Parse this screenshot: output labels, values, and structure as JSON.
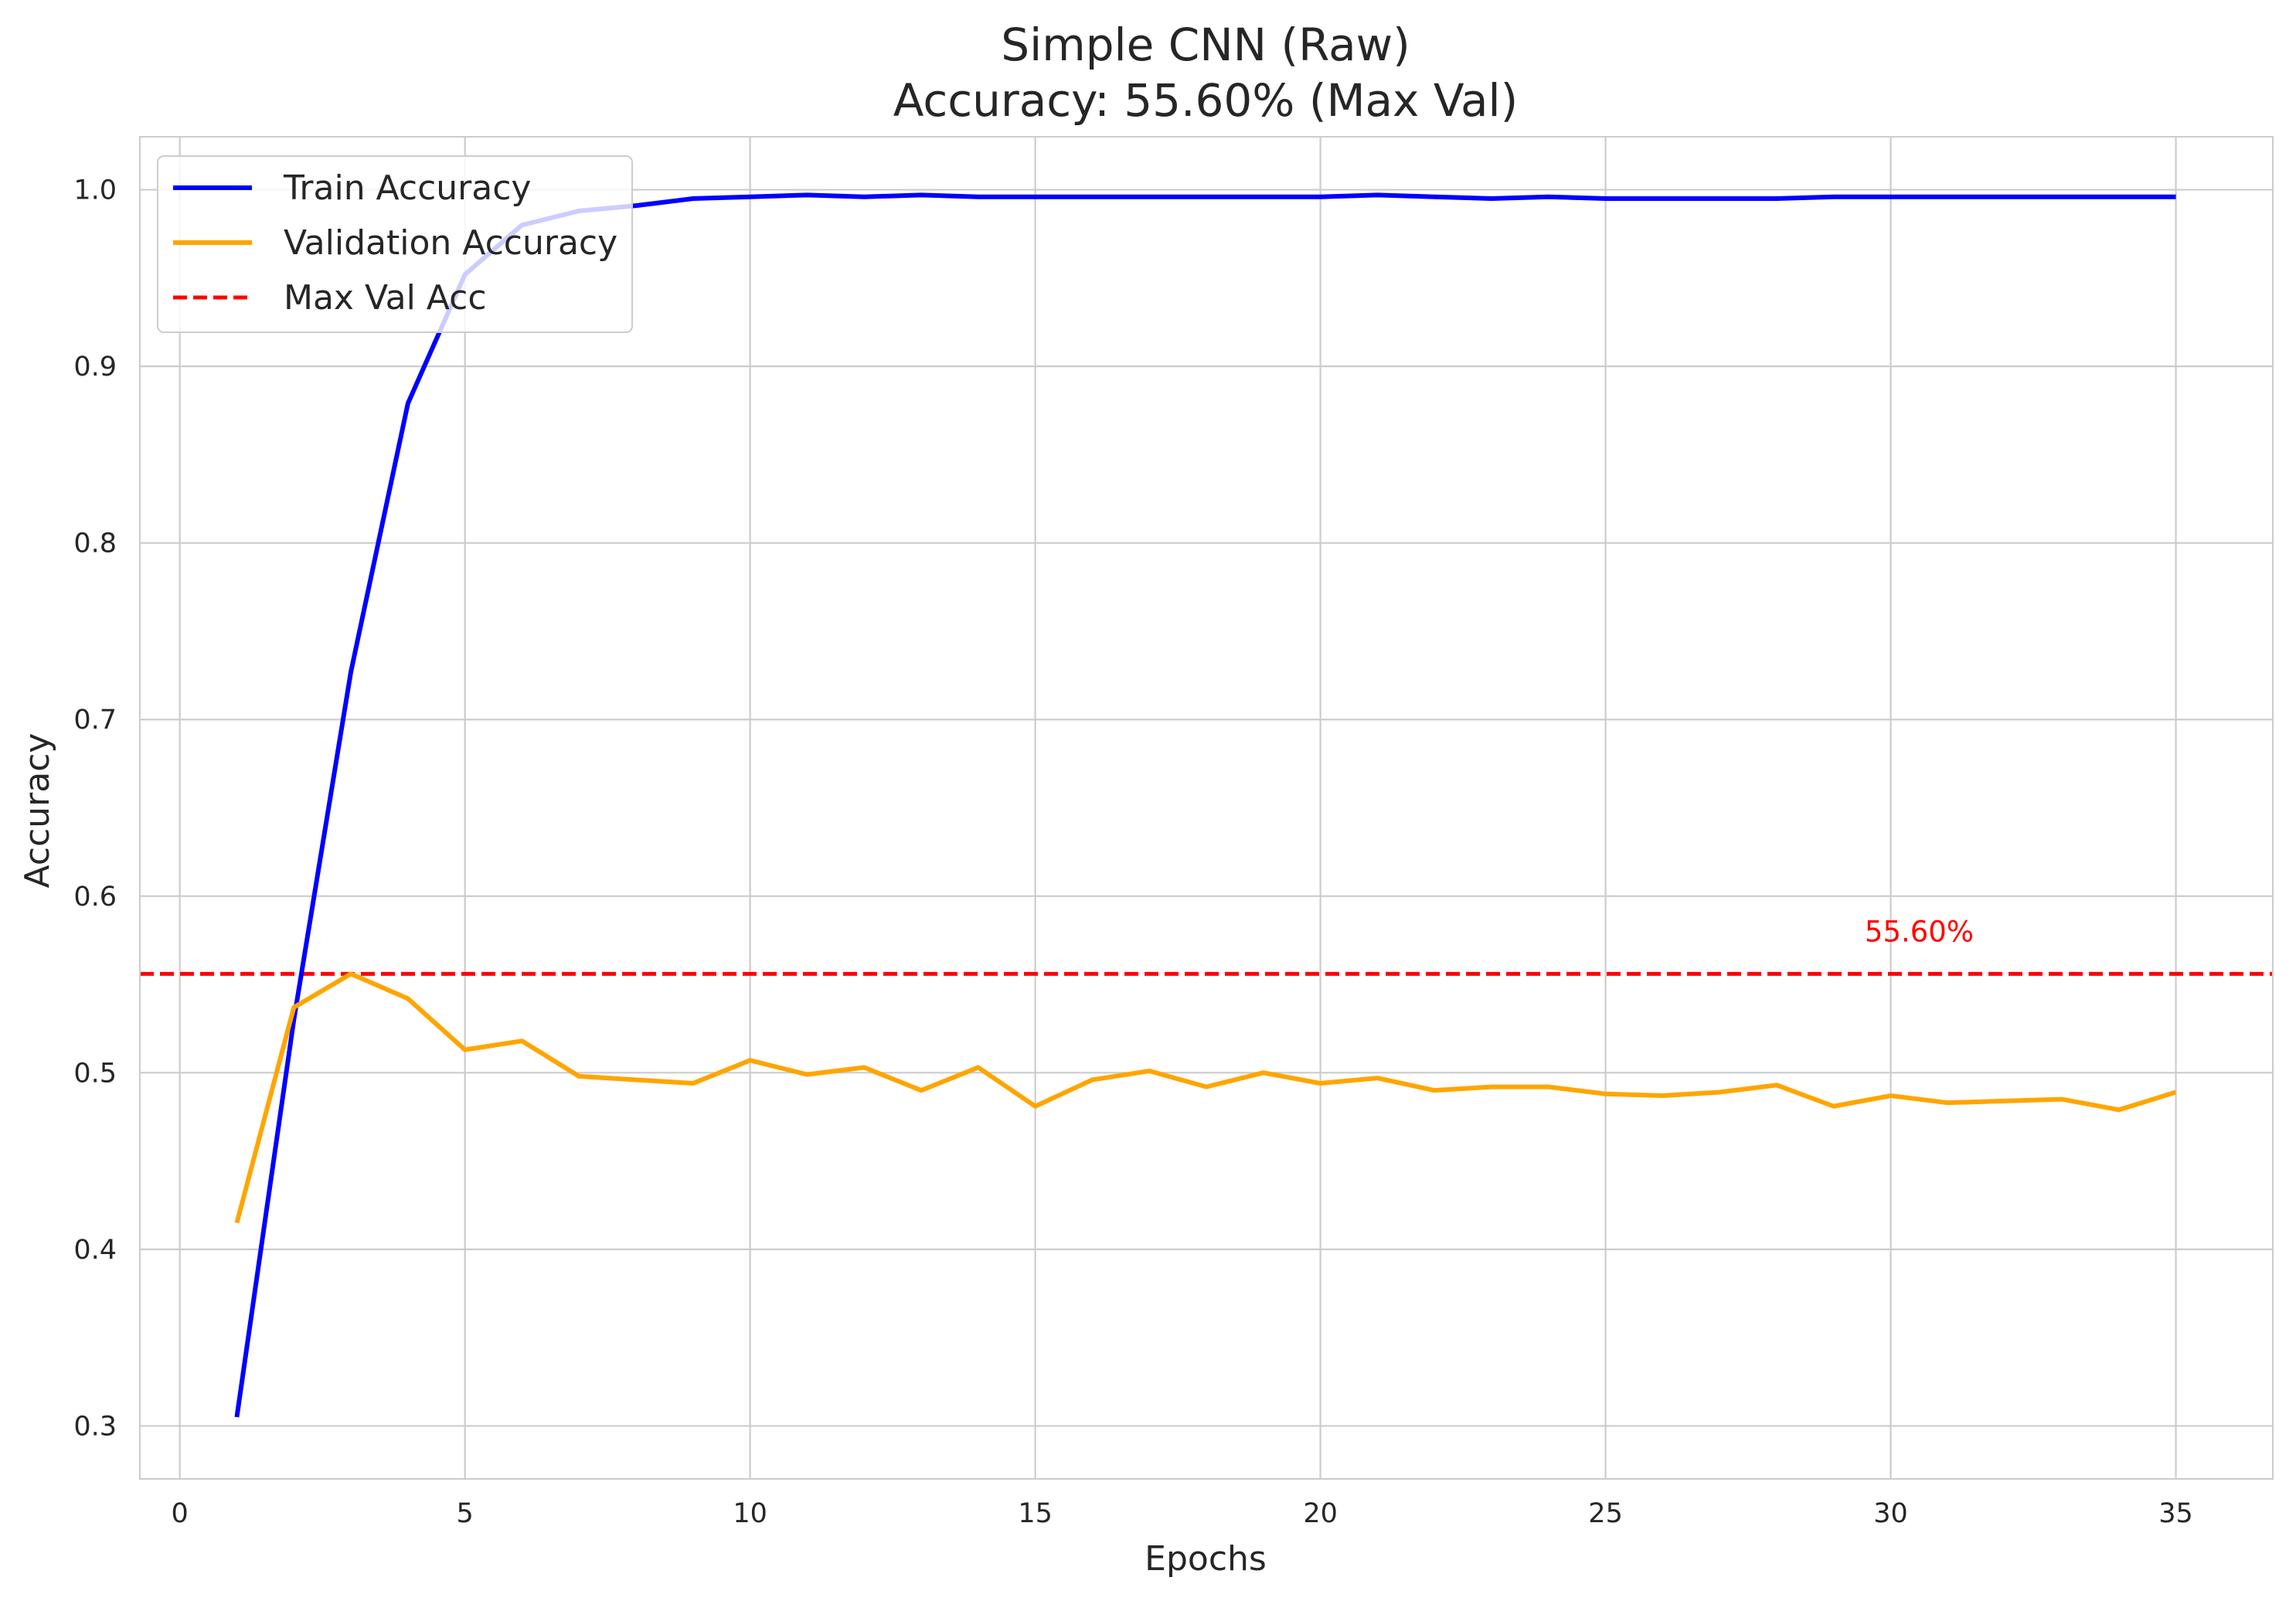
{
  "chart_data": {
    "type": "line",
    "title": "Simple CNN (Raw)",
    "subtitle": "Accuracy: 55.60% (Max Val)",
    "xlabel": "Epochs",
    "ylabel": "Accuracy",
    "xlim": [
      -0.7,
      36.7
    ],
    "ylim": [
      0.27,
      1.03
    ],
    "x_ticks": [
      0,
      5,
      10,
      15,
      20,
      25,
      30,
      35
    ],
    "x_tick_labels": [
      "0",
      "5",
      "10",
      "15",
      "20",
      "25",
      "30",
      "35"
    ],
    "y_ticks": [
      0.3,
      0.4,
      0.5,
      0.6,
      0.7,
      0.8,
      0.9,
      1.0
    ],
    "y_tick_labels": [
      "0.3",
      "0.4",
      "0.5",
      "0.6",
      "0.7",
      "0.8",
      "0.9",
      "1.0"
    ],
    "grid": true,
    "legend_position": "upper-left",
    "x": [
      1,
      2,
      3,
      4,
      5,
      6,
      7,
      8,
      9,
      10,
      11,
      12,
      13,
      14,
      15,
      16,
      17,
      18,
      19,
      20,
      21,
      22,
      23,
      24,
      25,
      26,
      27,
      28,
      29,
      30,
      31,
      32,
      33,
      34,
      35
    ],
    "series": [
      {
        "name": "Train Accuracy",
        "color": "#0000ff",
        "style": "solid",
        "values": [
          0.305,
          0.53,
          0.727,
          0.879,
          0.952,
          0.98,
          0.988,
          0.991,
          0.995,
          0.996,
          0.997,
          0.996,
          0.997,
          0.996,
          0.996,
          0.996,
          0.996,
          0.996,
          0.996,
          0.996,
          0.997,
          0.996,
          0.995,
          0.996,
          0.995,
          0.995,
          0.995,
          0.995,
          0.996,
          0.996,
          0.996,
          0.996,
          0.996,
          0.996,
          0.996
        ]
      },
      {
        "name": "Validation Accuracy",
        "color": "#ffa500",
        "style": "solid",
        "values": [
          0.415,
          0.537,
          0.556,
          0.542,
          0.513,
          0.518,
          0.498,
          0.496,
          0.494,
          0.507,
          0.499,
          0.503,
          0.49,
          0.503,
          0.481,
          0.496,
          0.501,
          0.492,
          0.5,
          0.494,
          0.497,
          0.49,
          0.492,
          0.492,
          0.488,
          0.487,
          0.489,
          0.493,
          0.481,
          0.487,
          0.483,
          0.484,
          0.485,
          0.479,
          0.489
        ]
      }
    ],
    "reference_lines": [
      {
        "name": "Max Val Acc",
        "orientation": "horizontal",
        "value": 0.556,
        "color": "#ff0000",
        "style": "dashed"
      }
    ],
    "annotations": [
      {
        "text": "55.60%",
        "x": 30.5,
        "y": 0.58,
        "color": "#ff0000"
      }
    ]
  }
}
